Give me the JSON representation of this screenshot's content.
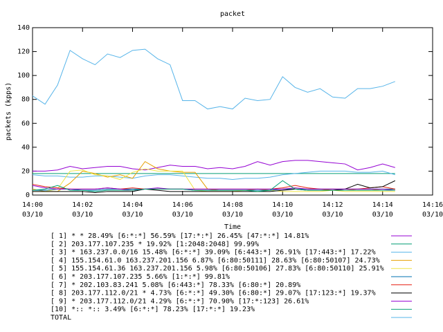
{
  "chart_data": {
    "type": "line",
    "title": "packet",
    "xlabel": "Time",
    "ylabel": "packets (kpps)",
    "x": [
      0,
      0.5,
      1,
      1.5,
      2,
      2.5,
      3,
      3.5,
      4,
      4.5,
      5,
      5.5,
      6,
      6.5,
      7,
      7.5,
      8,
      8.5,
      9,
      9.5,
      10,
      10.5,
      11,
      11.5,
      12,
      12.5,
      13,
      13.5,
      14,
      14.5
    ],
    "xlim": [
      0,
      16
    ],
    "xticks": [
      {
        "value": 0,
        "label": "14:00",
        "date": "03/10"
      },
      {
        "value": 2,
        "label": "14:02",
        "date": "03/10"
      },
      {
        "value": 4,
        "label": "14:04",
        "date": "03/10"
      },
      {
        "value": 6,
        "label": "14:06",
        "date": "03/10"
      },
      {
        "value": 8,
        "label": "14:08",
        "date": "03/10"
      },
      {
        "value": 10,
        "label": "14:10",
        "date": "03/10"
      },
      {
        "value": 12,
        "label": "14:12",
        "date": "03/10"
      },
      {
        "value": 14,
        "label": "14:14",
        "date": "03/10"
      },
      {
        "value": 16,
        "label": "14:16",
        "date": "03/10"
      }
    ],
    "ylim": [
      0,
      140
    ],
    "yticks": [
      0,
      20,
      40,
      60,
      80,
      100,
      120,
      140
    ],
    "series": [
      {
        "name": "[ 1] * * 28.49%  [6:*:*] 56.59% [17:*:*] 26.45% [47:*:*] 14.81%",
        "color": "#9400d3",
        "values": [
          20,
          20,
          21,
          24,
          22,
          23,
          24,
          24,
          22,
          21,
          23,
          25,
          24,
          24,
          22,
          23,
          22,
          24,
          28,
          25,
          28,
          29,
          29,
          28,
          27,
          26,
          21,
          23,
          26,
          23
        ]
      },
      {
        "name": "[ 2] 203.177.107.235 * 19.92%  [1:2048:2048] 99.99%",
        "color": "#009e73",
        "values": [
          18,
          18,
          18,
          18,
          18,
          18,
          18,
          18,
          18,
          18,
          18,
          18,
          18,
          18,
          18,
          18,
          18,
          18,
          18,
          18,
          18,
          18,
          18,
          18,
          18,
          18,
          18,
          18,
          18,
          18
        ]
      },
      {
        "name": "[ 3] * 163.237.0.0/16 15.48%  [6:*:*] 39.09% [6:443:*] 26.91% [17:443:*] 17.22%",
        "color": "#56b4e9",
        "values": [
          17,
          16,
          16,
          15,
          15,
          16,
          16,
          15,
          14,
          16,
          17,
          17,
          16,
          15,
          14,
          14,
          13,
          14,
          14,
          15,
          17,
          18,
          19,
          20,
          20,
          20,
          19,
          19,
          20,
          17
        ]
      },
      {
        "name": "[ 4] 155.154.61.0 163.237.201.156 6.87%  [6:80:50111] 28.63% [6:80:50107] 24.73%",
        "color": "#e69f00",
        "values": [
          5,
          3,
          3,
          10,
          20,
          18,
          15,
          17,
          14,
          28,
          22,
          20,
          19,
          19,
          5,
          4,
          4,
          4,
          5,
          4,
          5,
          6,
          5,
          5,
          4,
          5,
          4,
          4,
          5,
          5
        ]
      },
      {
        "name": "[ 5] 155.154.61.36 163.237.201.156 5.98%  [6:80:50106] 27.83% [6:80:50110] 25.91%",
        "color": "#f0e442",
        "values": [
          3,
          3,
          5,
          20,
          21,
          17,
          16,
          13,
          19,
          22,
          20,
          20,
          20,
          4,
          3,
          3,
          3,
          4,
          3,
          4,
          3,
          3,
          3,
          3,
          4,
          3,
          3,
          3,
          3,
          3
        ]
      },
      {
        "name": "[ 6] * 203.177.107.235 5.66%  [1:*:*] 99.81%",
        "color": "#0072b2",
        "values": [
          4,
          4,
          5,
          5,
          4,
          4,
          5,
          5,
          5,
          5,
          5,
          5,
          5,
          4,
          4,
          4,
          4,
          4,
          4,
          4,
          5,
          5,
          5,
          5,
          5,
          5,
          5,
          5,
          5,
          5
        ]
      },
      {
        "name": "[ 7] * 202.103.83.241 5.08%  [6:443:*] 78.33% [6:80:*] 20.89%",
        "color": "#e51e10",
        "values": [
          9,
          7,
          6,
          5,
          5,
          5,
          6,
          5,
          6,
          5,
          5,
          5,
          5,
          5,
          5,
          5,
          5,
          5,
          5,
          5,
          6,
          8,
          6,
          5,
          5,
          5,
          5,
          6,
          7,
          5
        ]
      },
      {
        "name": "[ 8] 203.177.112.0/21 * 4.73%  [6:*:*] 49.30% [6:80:*] 29.07% [17:123:*] 19.37%",
        "color": "#000000",
        "values": [
          3,
          3,
          3,
          3,
          3,
          2,
          3,
          3,
          3,
          5,
          4,
          3,
          3,
          3,
          3,
          3,
          3,
          3,
          3,
          3,
          4,
          5,
          4,
          4,
          4,
          5,
          9,
          6,
          7,
          12
        ]
      },
      {
        "name": "[ 9] * 203.177.112.0/21 4.29%  [6:*:*] 70.90% [17:*:123] 26.61%",
        "color": "#9400d3",
        "values": [
          8,
          6,
          5,
          5,
          5,
          5,
          6,
          5,
          4,
          5,
          6,
          5,
          5,
          5,
          5,
          5,
          5,
          5,
          5,
          5,
          5,
          6,
          5,
          5,
          5,
          5,
          5,
          5,
          5,
          4
        ]
      },
      {
        "name": "[10] *:: *:: 3.49%  [6:*:*] 78.23% [17:*:*] 19.23%",
        "color": "#009e73",
        "values": [
          4,
          5,
          8,
          4,
          4,
          3,
          4,
          4,
          4,
          5,
          5,
          5,
          5,
          4,
          4,
          4,
          4,
          4,
          3,
          4,
          12,
          5,
          4,
          4,
          4,
          4,
          4,
          4,
          4,
          4
        ]
      },
      {
        "name": "TOTAL",
        "color": "#56b4e9",
        "values": [
          83,
          76,
          92,
          121,
          114,
          109,
          118,
          115,
          121,
          122,
          114,
          109,
          79,
          79,
          72,
          74,
          72,
          81,
          79,
          80,
          99,
          90,
          86,
          89,
          82,
          81,
          89,
          89,
          91,
          95
        ]
      }
    ]
  }
}
